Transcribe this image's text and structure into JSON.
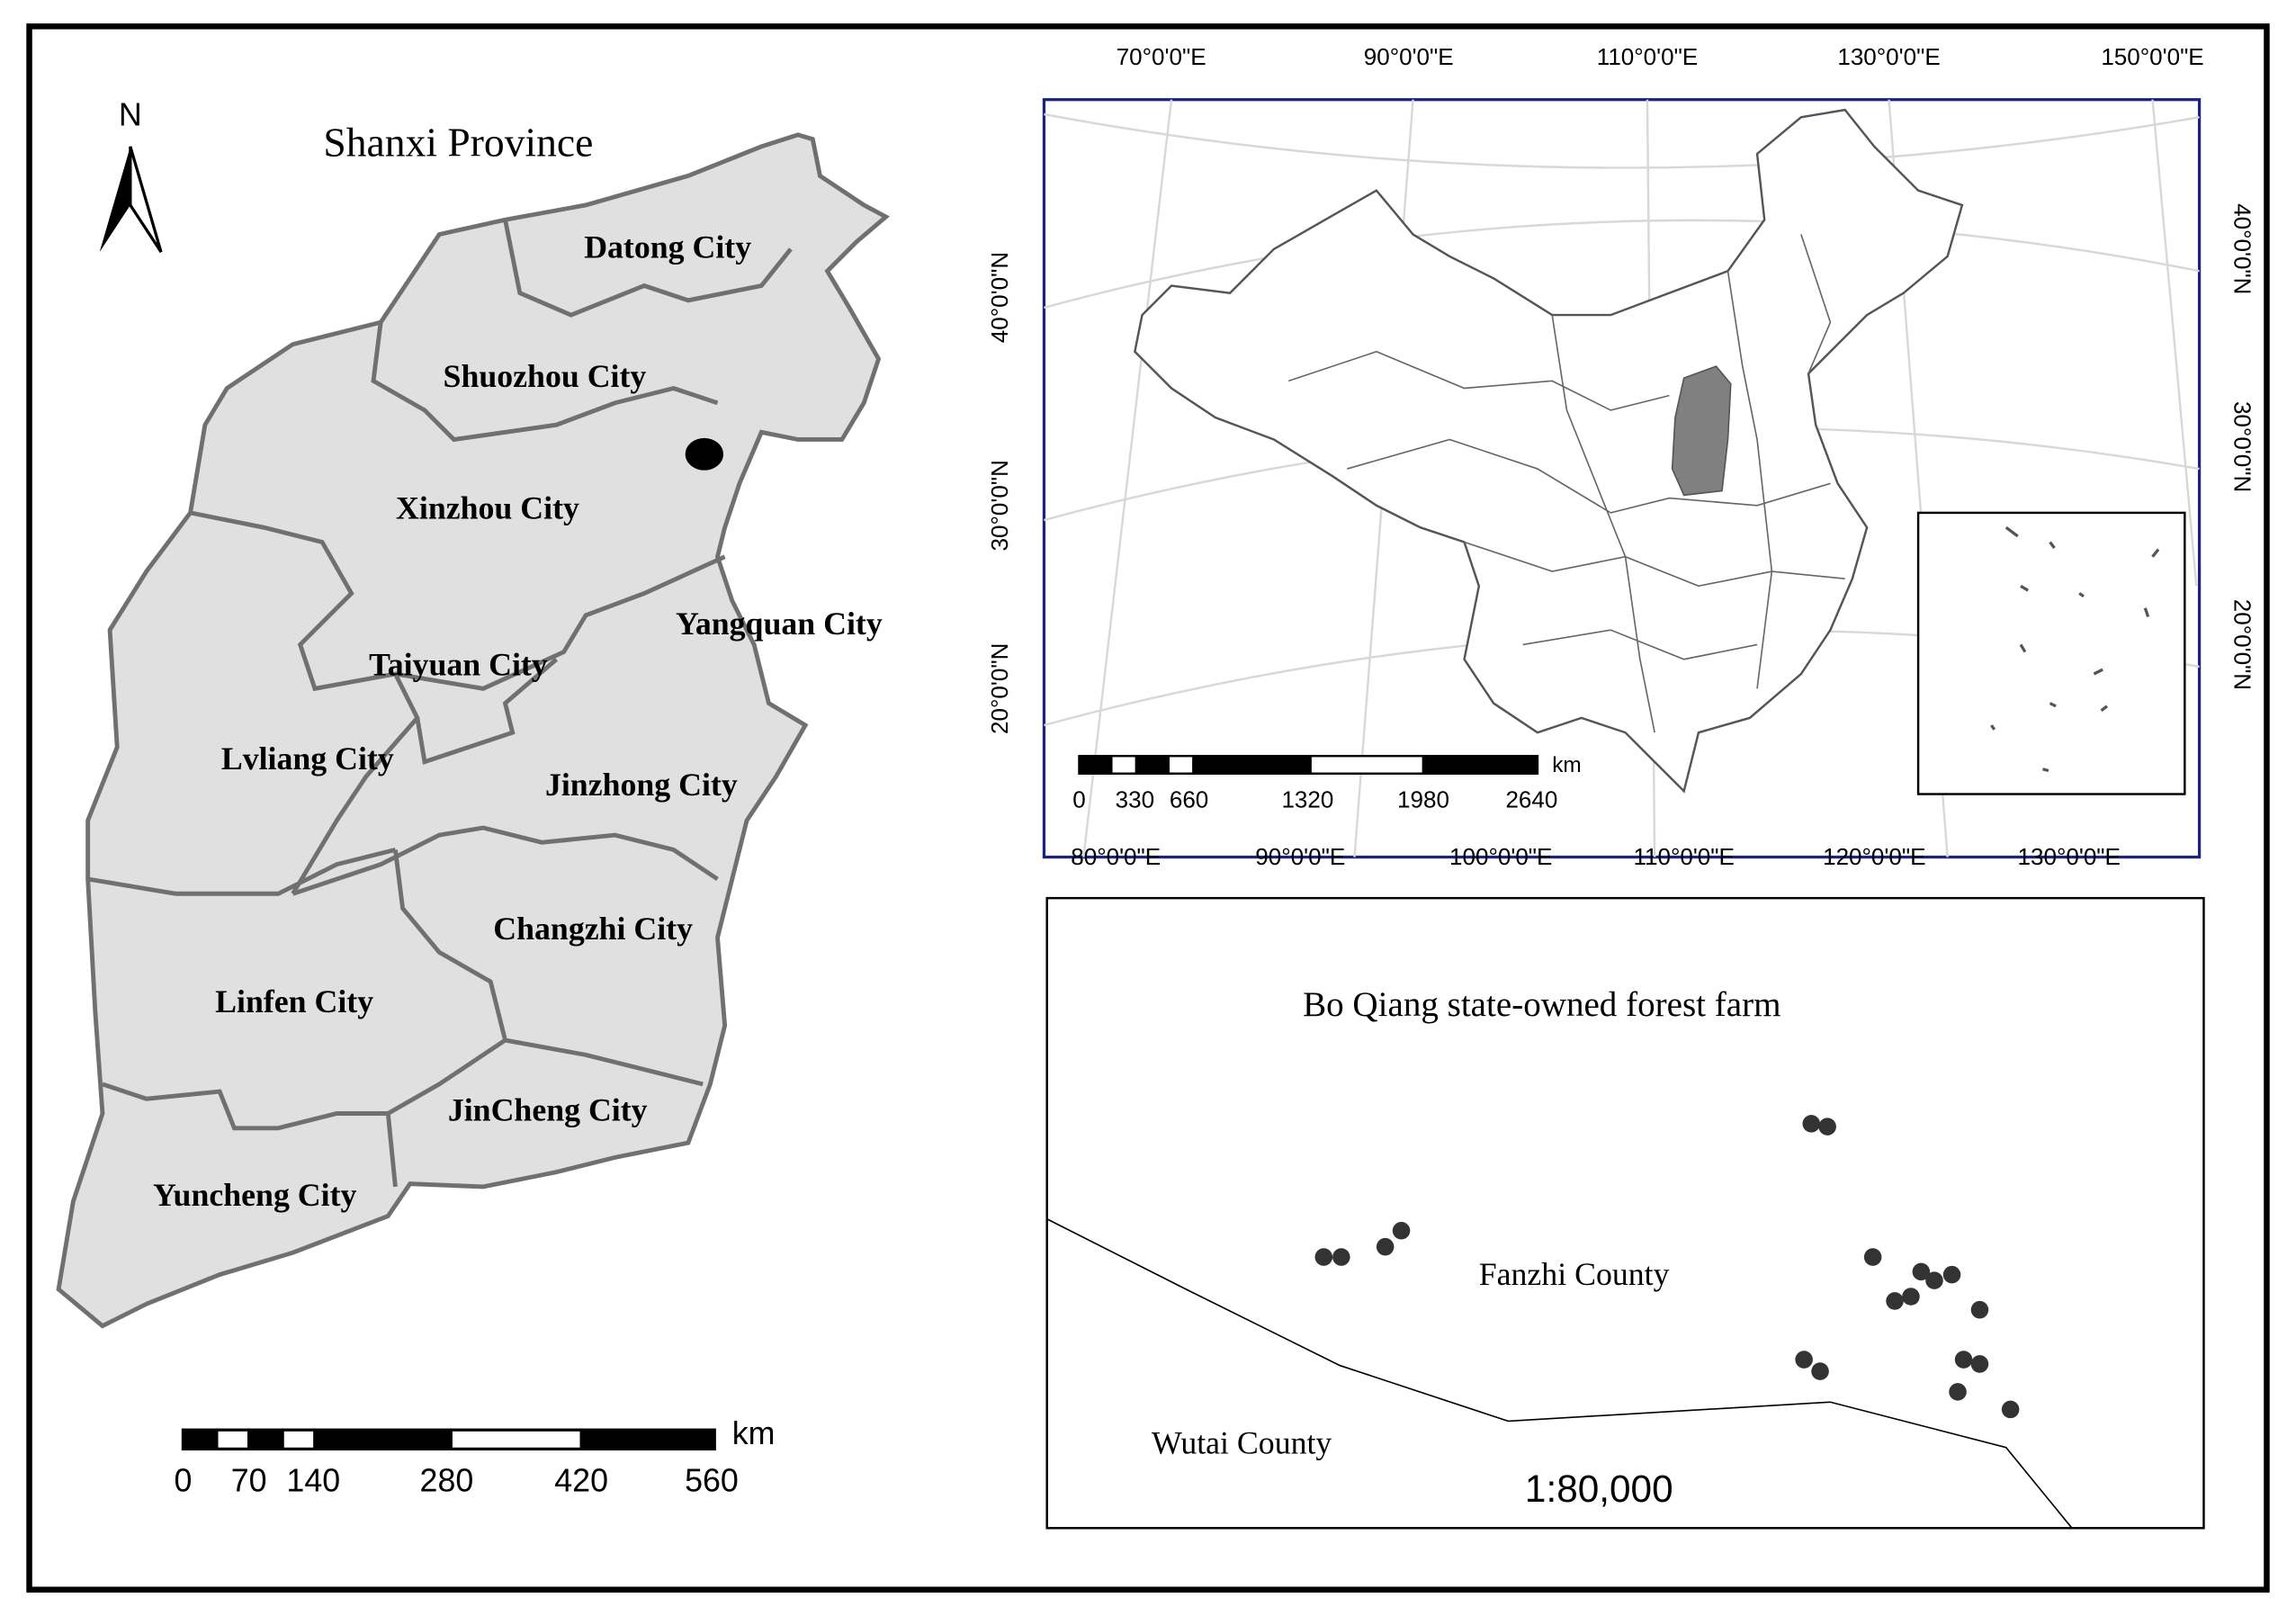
{
  "left_map": {
    "title": "Shanxi Province",
    "north": "N",
    "cities": [
      "Datong City",
      "Shuozhou City",
      "Xinzhou City",
      "Yangquan City",
      "Taiyuan City",
      "Lvliang City",
      "Jinzhong City",
      "Changzhi City",
      "Linfen City",
      "JinCheng City",
      "Yuncheng City"
    ],
    "scale_bar": {
      "unit": "km",
      "labels": [
        "0",
        "70",
        "140",
        "280",
        "420",
        "560"
      ]
    }
  },
  "locator_map": {
    "top_labels": [
      "70°0'0\"E",
      "90°0'0\"E",
      "110°0'0\"E",
      "130°0'0\"E",
      "150°0'0\"E"
    ],
    "bottom_labels": [
      "80°0'0\"E",
      "90°0'0\"E",
      "100°0'0\"E",
      "110°0'0\"E",
      "120°0'0\"E",
      "130°0'0\"E"
    ],
    "left_labels": [
      "40°0'0\"N",
      "30°0'0\"N",
      "20°0'0\"N"
    ],
    "right_labels": [
      "40°0'0\"N",
      "30°0'0\"N",
      "20°0'0\"N"
    ],
    "scale_bar": {
      "unit": "km",
      "labels": [
        "0",
        "330",
        "660",
        "1320",
        "1980",
        "2640"
      ]
    }
  },
  "detail_map": {
    "title": "Bo Qiang state-owned forest farm",
    "labels": [
      "Fanzhi County",
      "Wutai County"
    ],
    "scale": "1:80,000"
  }
}
